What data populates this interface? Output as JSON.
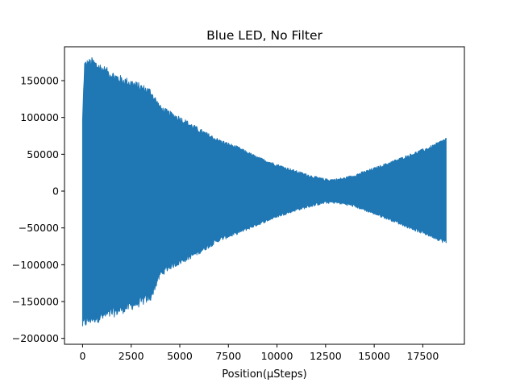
{
  "chart_data": {
    "type": "line",
    "title": "Blue LED, No Filter",
    "xlabel": "Position(µSteps)",
    "ylabel": "",
    "xlim": [
      -930,
      19640
    ],
    "ylim": [
      -208000,
      196000
    ],
    "xticks": [
      0,
      2500,
      5000,
      7500,
      10000,
      12500,
      15000,
      17500
    ],
    "yticks": [
      -200000,
      -150000,
      -100000,
      -50000,
      0,
      50000,
      100000,
      150000
    ],
    "grid": false,
    "series": [
      {
        "color": "#1f77b4",
        "description_points": {
          "x": [
            0,
            100,
            500,
            1000,
            1500,
            2000,
            2500,
            3000,
            3500,
            4000,
            4500,
            5000,
            6000,
            7000,
            8000,
            9000,
            10000,
            11000,
            12000,
            12500,
            13000,
            13500,
            14000,
            15000,
            16000,
            17000,
            18000,
            18700
          ],
          "upper": [
            95000,
            170000,
            174000,
            165000,
            157000,
            150000,
            146000,
            140000,
            134000,
            112000,
            104000,
            98000,
            82000,
            68000,
            58000,
            45000,
            35000,
            26000,
            18000,
            15000,
            15000,
            17000,
            21000,
            30000,
            40000,
            50000,
            60000,
            70000
          ],
          "lower": [
            -180000,
            -178000,
            -172000,
            -170000,
            -165000,
            -160000,
            -155000,
            -150000,
            -143000,
            -112000,
            -102000,
            -96000,
            -82000,
            -66000,
            -56000,
            -45000,
            -34000,
            -25000,
            -18000,
            -15000,
            -15000,
            -17000,
            -20000,
            -30000,
            -40000,
            -51000,
            -61000,
            -69000
          ]
        }
      }
    ]
  }
}
